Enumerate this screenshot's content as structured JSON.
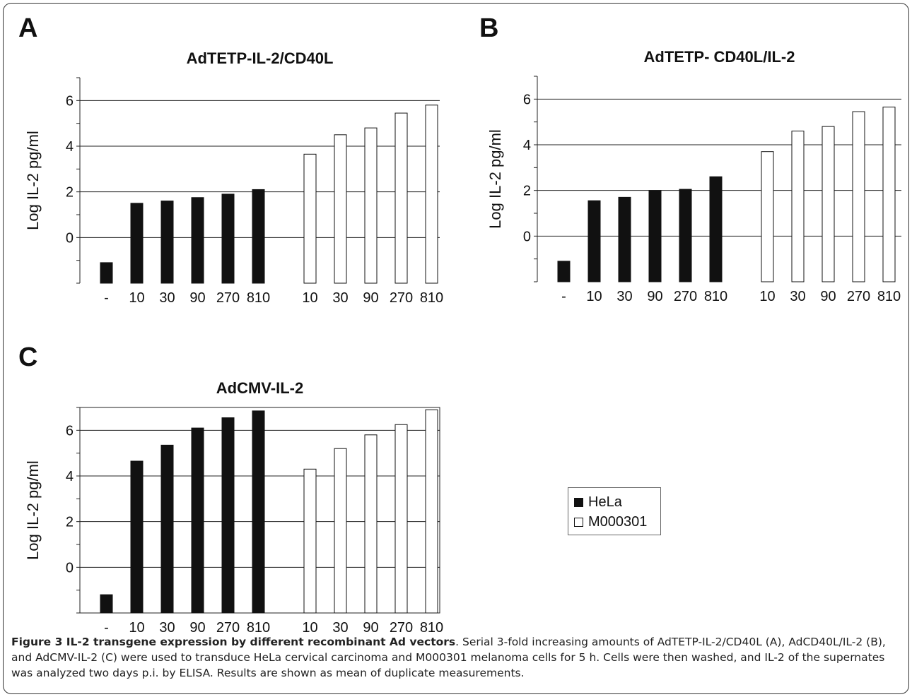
{
  "panels": {
    "a": {
      "letter": "A"
    },
    "b": {
      "letter": "B"
    },
    "c": {
      "letter": "C"
    }
  },
  "chart_data": [
    {
      "type": "bar",
      "title": "AdTETP-IL-2/CD40L",
      "ylabel": "Log IL-2 pg/ml",
      "xlabel": "",
      "ylim": [
        -2,
        7
      ],
      "yticks": [
        0,
        2,
        4,
        6
      ],
      "grid": true,
      "categories": [
        "-",
        "10",
        "30",
        "90",
        "270",
        "810",
        "10",
        "30",
        "90",
        "270",
        "810"
      ],
      "series": [
        {
          "name": "HeLa",
          "color": "#111111",
          "values": [
            -1.1,
            1.5,
            1.6,
            1.75,
            1.9,
            2.1,
            null,
            null,
            null,
            null,
            null
          ]
        },
        {
          "name": "M000301",
          "color": "#ffffff",
          "values": [
            null,
            null,
            null,
            null,
            null,
            null,
            3.65,
            4.5,
            4.8,
            5.45,
            5.8
          ]
        }
      ]
    },
    {
      "type": "bar",
      "title": "AdTETP- CD40L/IL-2",
      "ylabel": "Log IL-2 pg/ml",
      "xlabel": "",
      "ylim": [
        -2,
        7
      ],
      "yticks": [
        0,
        2,
        4,
        6
      ],
      "grid": true,
      "categories": [
        "-",
        "10",
        "30",
        "90",
        "270",
        "810",
        "10",
        "30",
        "90",
        "270",
        "810"
      ],
      "series": [
        {
          "name": "HeLa",
          "color": "#111111",
          "values": [
            -1.1,
            1.55,
            1.7,
            2.0,
            2.05,
            2.6,
            null,
            null,
            null,
            null,
            null
          ]
        },
        {
          "name": "M000301",
          "color": "#ffffff",
          "values": [
            null,
            null,
            null,
            null,
            null,
            null,
            3.7,
            4.6,
            4.8,
            5.45,
            5.65
          ]
        }
      ]
    },
    {
      "type": "bar",
      "title": "AdCMV-IL-2",
      "ylabel": "Log IL-2 pg/ml",
      "xlabel": "",
      "ylim": [
        -2,
        7
      ],
      "yticks": [
        0,
        2,
        4,
        6
      ],
      "grid": true,
      "categories": [
        "-",
        "10",
        "30",
        "90",
        "270",
        "810",
        "10",
        "30",
        "90",
        "270",
        "810"
      ],
      "series": [
        {
          "name": "HeLa",
          "color": "#111111",
          "values": [
            -1.2,
            4.65,
            5.35,
            6.1,
            6.55,
            6.85,
            null,
            null,
            null,
            null,
            null
          ]
        },
        {
          "name": "M000301",
          "color": "#ffffff",
          "values": [
            null,
            null,
            null,
            null,
            null,
            null,
            4.3,
            5.2,
            5.8,
            6.25,
            6.9
          ]
        }
      ]
    }
  ],
  "legend": {
    "items": [
      {
        "label": "HeLa",
        "color": "#111111"
      },
      {
        "label": "M000301",
        "color": "#ffffff"
      }
    ]
  },
  "caption": {
    "title": "Figure 3 IL-2 transgene expression by different recombinant Ad vectors",
    "text": ". Serial 3-fold increasing amounts of AdTETP-IL-2/CD40L (A), AdCD40L/IL-2 (B), and AdCMV-IL-2 (C) were used to transduce HeLa cervical carcinoma and M000301 melanoma cells for 5 h. Cells were then washed, and IL-2 of the supernates was analyzed two days p.i. by ELISA. Results are shown as mean of duplicate measurements."
  }
}
